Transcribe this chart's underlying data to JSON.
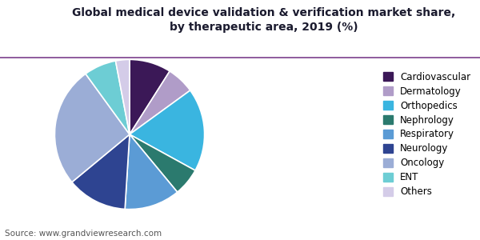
{
  "title": "Global medical device validation & verification market share,\nby therapeutic area, 2019 (%)",
  "labels": [
    "Cardiovascular",
    "Dermatology",
    "Orthopedics",
    "Nephrology",
    "Respiratory",
    "Neurology",
    "Oncology",
    "ENT",
    "Others"
  ],
  "values": [
    9,
    6,
    18,
    6,
    12,
    13,
    26,
    7,
    3
  ],
  "colors": [
    "#3b1857",
    "#b09cc8",
    "#3ab5e0",
    "#2b7a6e",
    "#5b9bd5",
    "#2e4491",
    "#9badd6",
    "#6dcdd4",
    "#d4cce8"
  ],
  "startangle": 90,
  "source_text": "Source: www.grandviewresearch.com",
  "background_color": "#ffffff",
  "title_color": "#1a1a2e",
  "title_fontsize": 10,
  "legend_fontsize": 8.5,
  "source_fontsize": 7.5,
  "line_color": "#7b3f8c"
}
